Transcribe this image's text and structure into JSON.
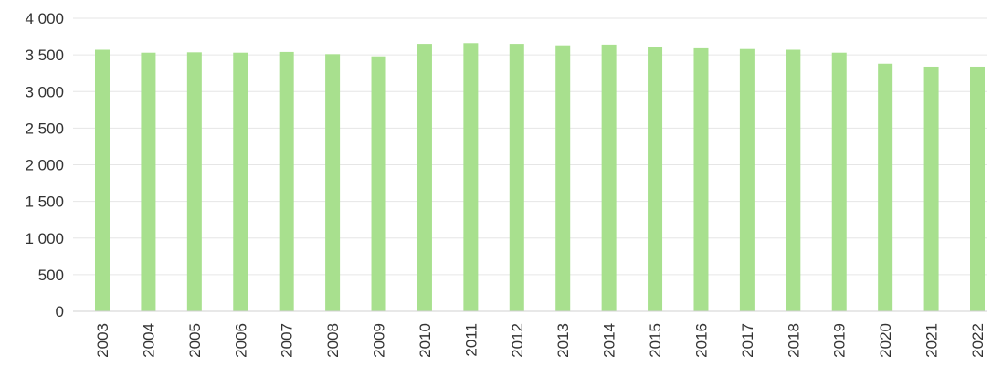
{
  "chart_data": {
    "type": "bar",
    "categories": [
      "2003",
      "2004",
      "2005",
      "2006",
      "2007",
      "2008",
      "2009",
      "2010",
      "2011",
      "2012",
      "2013",
      "2014",
      "2015",
      "2016",
      "2017",
      "2018",
      "2019",
      "2020",
      "2021",
      "2022"
    ],
    "values": [
      3570,
      3530,
      3535,
      3530,
      3540,
      3510,
      3480,
      3650,
      3660,
      3650,
      3630,
      3640,
      3610,
      3590,
      3580,
      3570,
      3530,
      3380,
      3340,
      3340
    ],
    "ylim": [
      0,
      4000
    ],
    "yticks": [
      0,
      500,
      1000,
      1500,
      2000,
      2500,
      3000,
      3500,
      4000
    ],
    "ytick_labels": [
      "0",
      "500",
      "1 000",
      "1 500",
      "2 000",
      "2 500",
      "3 000",
      "3 500",
      "4 000"
    ],
    "bar_color": "#a8e08e",
    "grid": true,
    "legend": "none"
  }
}
